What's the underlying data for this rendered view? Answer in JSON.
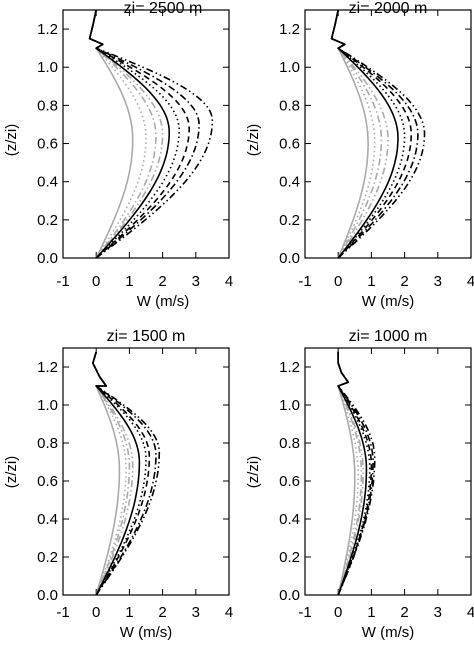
{
  "chart_data": [
    {
      "type": "line",
      "title": "zi= 2500 m",
      "xlabel": "W (m/s)",
      "ylabel": "(z/zi)",
      "xlim": [
        -1,
        4
      ],
      "ylim": [
        0,
        1.3
      ],
      "xticks": [
        "-1",
        "0",
        "1",
        "2",
        "3",
        "4"
      ],
      "yticks": [
        "0.0",
        "0.2",
        "0.4",
        "0.6",
        "0.8",
        "1.0",
        "1.2"
      ],
      "top_profile": [
        [
          0.0,
          1.3
        ],
        [
          -0.1,
          1.22
        ],
        [
          -0.2,
          1.15
        ],
        [
          0.2,
          1.12
        ]
      ],
      "series": [
        {
          "color": "#aaaaaa",
          "dash": "solid",
          "peak": 1.1,
          "z_peak": 0.62
        },
        {
          "color": "#aaaaaa",
          "dash": "dot",
          "peak": 1.5,
          "z_peak": 0.63
        },
        {
          "color": "#aaaaaa",
          "dash": "dashdot",
          "peak": 1.8,
          "z_peak": 0.64
        },
        {
          "color": "#aaaaaa",
          "dash": "dashdotdot",
          "peak": 2.0,
          "z_peak": 0.65
        },
        {
          "color": "#000000",
          "dash": "solid",
          "peak": 2.2,
          "z_peak": 0.66
        },
        {
          "color": "#000000",
          "dash": "dot",
          "peak": 2.5,
          "z_peak": 0.67
        },
        {
          "color": "#000000",
          "dash": "dash",
          "peak": 2.8,
          "z_peak": 0.68
        },
        {
          "color": "#000000",
          "dash": "dashdot",
          "peak": 3.1,
          "z_peak": 0.7
        },
        {
          "color": "#000000",
          "dash": "dashdotdot",
          "peak": 3.5,
          "z_peak": 0.72
        }
      ]
    },
    {
      "type": "line",
      "title": "zi= 2000 m",
      "xlabel": "W (m/s)",
      "ylabel": "(z/zi)",
      "xlim": [
        -1,
        4
      ],
      "ylim": [
        0,
        1.3
      ],
      "xticks": [
        "-1",
        "0",
        "1",
        "2",
        "3",
        "4"
      ],
      "yticks": [
        "0.0",
        "0.2",
        "0.4",
        "0.6",
        "0.8",
        "1.0",
        "1.2"
      ],
      "top_profile": [
        [
          0.0,
          1.3
        ],
        [
          -0.1,
          1.22
        ],
        [
          -0.2,
          1.15
        ],
        [
          0.2,
          1.12
        ]
      ],
      "series": [
        {
          "color": "#aaaaaa",
          "dash": "solid",
          "peak": 0.9,
          "z_peak": 0.6
        },
        {
          "color": "#aaaaaa",
          "dash": "dot",
          "peak": 1.1,
          "z_peak": 0.61
        },
        {
          "color": "#aaaaaa",
          "dash": "dashdot",
          "peak": 1.3,
          "z_peak": 0.62
        },
        {
          "color": "#aaaaaa",
          "dash": "dashdotdot",
          "peak": 1.5,
          "z_peak": 0.62
        },
        {
          "color": "#000000",
          "dash": "solid",
          "peak": 1.8,
          "z_peak": 0.63
        },
        {
          "color": "#000000",
          "dash": "dot",
          "peak": 2.0,
          "z_peak": 0.64
        },
        {
          "color": "#000000",
          "dash": "dash",
          "peak": 2.2,
          "z_peak": 0.65
        },
        {
          "color": "#000000",
          "dash": "dashdot",
          "peak": 2.4,
          "z_peak": 0.65
        },
        {
          "color": "#000000",
          "dash": "dashdotdot",
          "peak": 2.6,
          "z_peak": 0.65
        }
      ]
    },
    {
      "type": "line",
      "title": "zi= 1500 m",
      "xlabel": "W (m/s)",
      "ylabel": "(z/zi)",
      "xlim": [
        -1,
        4
      ],
      "ylim": [
        0,
        1.3
      ],
      "xticks": [
        "-1",
        "0",
        "1",
        "2",
        "3",
        "4"
      ],
      "yticks": [
        "0.0",
        "0.2",
        "0.4",
        "0.6",
        "0.8",
        "1.0",
        "1.2"
      ],
      "top_profile": [
        [
          0.0,
          1.28
        ],
        [
          -0.1,
          1.22
        ],
        [
          0.1,
          1.15
        ],
        [
          0.3,
          1.1
        ]
      ],
      "series": [
        {
          "color": "#aaaaaa",
          "dash": "solid",
          "peak": 0.7,
          "z_peak": 0.66
        },
        {
          "color": "#aaaaaa",
          "dash": "dot",
          "peak": 0.9,
          "z_peak": 0.67
        },
        {
          "color": "#aaaaaa",
          "dash": "dashdot",
          "peak": 1.0,
          "z_peak": 0.68
        },
        {
          "color": "#aaaaaa",
          "dash": "dashdotdot",
          "peak": 1.1,
          "z_peak": 0.68
        },
        {
          "color": "#000000",
          "dash": "solid",
          "peak": 1.3,
          "z_peak": 0.7
        },
        {
          "color": "#000000",
          "dash": "dot",
          "peak": 1.5,
          "z_peak": 0.72
        },
        {
          "color": "#000000",
          "dash": "dash",
          "peak": 1.6,
          "z_peak": 0.73
        },
        {
          "color": "#000000",
          "dash": "dashdot",
          "peak": 1.8,
          "z_peak": 0.74
        },
        {
          "color": "#000000",
          "dash": "dashdotdot",
          "peak": 1.9,
          "z_peak": 0.75
        }
      ]
    },
    {
      "type": "line",
      "title": "zi= 1000 m",
      "xlabel": "W (m/s)",
      "ylabel": "(z/zi)",
      "xlim": [
        -1,
        4
      ],
      "ylim": [
        0,
        1.3
      ],
      "xticks": [
        "-1",
        "0",
        "1",
        "2",
        "3",
        "4"
      ],
      "yticks": [
        "0.0",
        "0.2",
        "0.4",
        "0.6",
        "0.8",
        "1.0",
        "1.2"
      ],
      "top_profile": [
        [
          0.0,
          1.28
        ],
        [
          0.0,
          1.22
        ],
        [
          0.1,
          1.17
        ],
        [
          0.3,
          1.12
        ]
      ],
      "series": [
        {
          "color": "#aaaaaa",
          "dash": "solid",
          "peak": 0.5,
          "z_peak": 0.62
        },
        {
          "color": "#aaaaaa",
          "dash": "dot",
          "peak": 0.6,
          "z_peak": 0.63
        },
        {
          "color": "#aaaaaa",
          "dash": "dashdot",
          "peak": 0.7,
          "z_peak": 0.64
        },
        {
          "color": "#aaaaaa",
          "dash": "dashdotdot",
          "peak": 0.75,
          "z_peak": 0.65
        },
        {
          "color": "#000000",
          "dash": "solid",
          "peak": 0.85,
          "z_peak": 0.66
        },
        {
          "color": "#000000",
          "dash": "dot",
          "peak": 0.95,
          "z_peak": 0.67
        },
        {
          "color": "#000000",
          "dash": "dash",
          "peak": 1.0,
          "z_peak": 0.68
        },
        {
          "color": "#000000",
          "dash": "dashdot",
          "peak": 1.05,
          "z_peak": 0.7
        },
        {
          "color": "#000000",
          "dash": "dashdotdot",
          "peak": 1.1,
          "z_peak": 0.72
        }
      ]
    }
  ]
}
